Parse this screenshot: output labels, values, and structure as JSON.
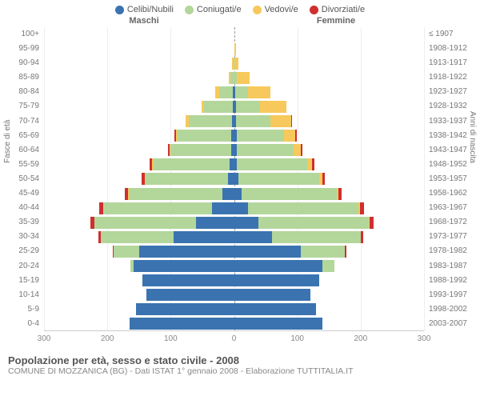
{
  "legend": [
    {
      "label": "Celibi/Nubili",
      "color": "#3b73b0"
    },
    {
      "label": "Coniugati/e",
      "color": "#b3d69b"
    },
    {
      "label": "Vedovi/e",
      "color": "#f7c95c"
    },
    {
      "label": "Divorziati/e",
      "color": "#cf2f2f"
    }
  ],
  "gender_m": "Maschi",
  "gender_f": "Femmine",
  "y_title_left": "Fasce di età",
  "y_title_right": "Anni di nascita",
  "x_ticks": [
    300,
    200,
    100,
    0,
    100,
    200,
    300
  ],
  "x_max": 300,
  "colors": {
    "single": "#3b73b0",
    "married": "#b3d69b",
    "widowed": "#f7c95c",
    "divorced": "#cf2f2f",
    "grid": "#eeeeee",
    "axis": "#cccccc"
  },
  "rows": [
    {
      "age": "100+",
      "birth": "≤ 1907",
      "m": [
        0,
        0,
        0,
        0
      ],
      "f": [
        0,
        0,
        0,
        0
      ]
    },
    {
      "age": "95-99",
      "birth": "1908-1912",
      "m": [
        0,
        0,
        0,
        0
      ],
      "f": [
        0,
        0,
        3,
        0
      ]
    },
    {
      "age": "90-94",
      "birth": "1913-1917",
      "m": [
        0,
        1,
        2,
        0
      ],
      "f": [
        0,
        1,
        6,
        0
      ]
    },
    {
      "age": "85-89",
      "birth": "1918-1922",
      "m": [
        0,
        6,
        2,
        0
      ],
      "f": [
        1,
        4,
        20,
        0
      ]
    },
    {
      "age": "80-84",
      "birth": "1923-1927",
      "m": [
        2,
        22,
        6,
        0
      ],
      "f": [
        2,
        20,
        35,
        0
      ]
    },
    {
      "age": "75-79",
      "birth": "1928-1932",
      "m": [
        2,
        45,
        4,
        0
      ],
      "f": [
        3,
        38,
        42,
        0
      ]
    },
    {
      "age": "70-74",
      "birth": "1933-1937",
      "m": [
        3,
        68,
        5,
        1
      ],
      "f": [
        3,
        55,
        32,
        1
      ]
    },
    {
      "age": "65-69",
      "birth": "1938-1942",
      "m": [
        4,
        85,
        3,
        2
      ],
      "f": [
        4,
        75,
        18,
        2
      ]
    },
    {
      "age": "60-64",
      "birth": "1943-1947",
      "m": [
        5,
        95,
        2,
        2
      ],
      "f": [
        4,
        90,
        12,
        2
      ]
    },
    {
      "age": "55-59",
      "birth": "1948-1952",
      "m": [
        7,
        120,
        2,
        4
      ],
      "f": [
        5,
        110,
        8,
        4
      ]
    },
    {
      "age": "50-54",
      "birth": "1953-1957",
      "m": [
        10,
        130,
        1,
        5
      ],
      "f": [
        7,
        128,
        5,
        4
      ]
    },
    {
      "age": "45-49",
      "birth": "1958-1962",
      "m": [
        18,
        148,
        1,
        6
      ],
      "f": [
        12,
        150,
        3,
        5
      ]
    },
    {
      "age": "40-44",
      "birth": "1963-1967",
      "m": [
        35,
        170,
        1,
        7
      ],
      "f": [
        22,
        175,
        2,
        6
      ]
    },
    {
      "age": "35-39",
      "birth": "1968-1972",
      "m": [
        60,
        160,
        0,
        7
      ],
      "f": [
        38,
        175,
        1,
        6
      ]
    },
    {
      "age": "30-34",
      "birth": "1973-1977",
      "m": [
        95,
        115,
        0,
        4
      ],
      "f": [
        60,
        140,
        0,
        4
      ]
    },
    {
      "age": "25-29",
      "birth": "1978-1982",
      "m": [
        150,
        40,
        0,
        1
      ],
      "f": [
        105,
        70,
        0,
        2
      ]
    },
    {
      "age": "20-24",
      "birth": "1983-1987",
      "m": [
        158,
        6,
        0,
        0
      ],
      "f": [
        140,
        18,
        0,
        0
      ]
    },
    {
      "age": "15-19",
      "birth": "1988-1992",
      "m": [
        145,
        0,
        0,
        0
      ],
      "f": [
        135,
        0,
        0,
        0
      ]
    },
    {
      "age": "10-14",
      "birth": "1993-1997",
      "m": [
        138,
        0,
        0,
        0
      ],
      "f": [
        120,
        0,
        0,
        0
      ]
    },
    {
      "age": "5-9",
      "birth": "1998-2002",
      "m": [
        155,
        0,
        0,
        0
      ],
      "f": [
        130,
        0,
        0,
        0
      ]
    },
    {
      "age": "0-4",
      "birth": "2003-2007",
      "m": [
        165,
        0,
        0,
        0
      ],
      "f": [
        140,
        0,
        0,
        0
      ]
    }
  ],
  "title": "Popolazione per età, sesso e stato civile - 2008",
  "subtitle": "COMUNE DI MOZZANICA (BG) - Dati ISTAT 1° gennaio 2008 - Elaborazione TUTTITALIA.IT"
}
